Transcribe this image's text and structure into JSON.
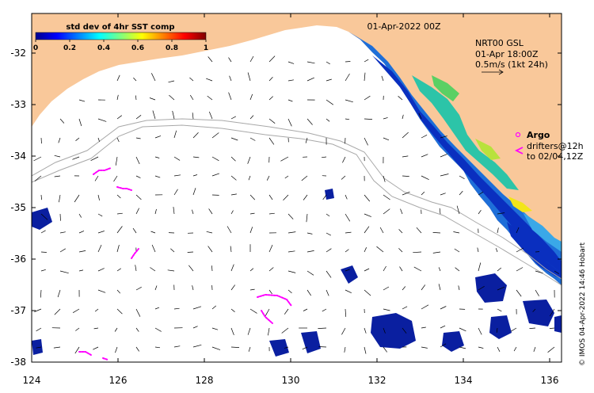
{
  "map": {
    "date_title": "01-Apr-2022 00Z",
    "colorbar": {
      "title": "std dev of 4hr SST comp",
      "ticks": [
        "0",
        "0.2",
        "0.4",
        "0.6",
        "0.8",
        "1"
      ],
      "range": [
        0,
        1
      ]
    },
    "info": {
      "line1": "NRT00 GSL",
      "line2": "01-Apr 18:00Z",
      "line3": "0.5m/s (1kt 24h)"
    },
    "legend": {
      "argo_label": "Argo",
      "drifters_label": "drifters@12h",
      "drifters_to": "to 02/04,12Z"
    },
    "credit": "© IMOS 04-Apr-2022 14:46 Hobart",
    "x_ticks": [
      "124",
      "126",
      "128",
      "130",
      "132",
      "134",
      "136"
    ],
    "y_ticks": [
      "-32",
      "-33",
      "-34",
      "-35",
      "-36",
      "-37",
      "-38"
    ],
    "colors": {
      "land": "#f9c89a",
      "argo": "#ff00ff",
      "contour": "#a8a8a8"
    }
  }
}
